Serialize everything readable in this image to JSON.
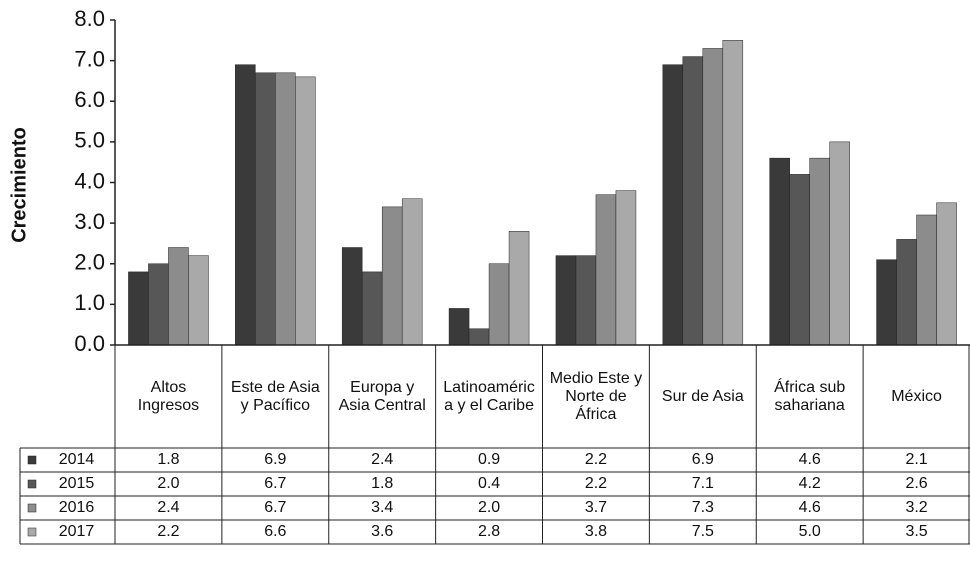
{
  "chart_data": {
    "type": "bar",
    "y_label": "Crecimiento",
    "categories": [
      "Altos Ingresos",
      "Este de Asia y Pacífico",
      "Europa y Asia Central",
      "Latinoamérica y el Caribe",
      "Medio Este y Norte de África",
      "Sur de Asia",
      "África sub sahariana",
      "México"
    ],
    "series": [
      {
        "name": "2014",
        "color": "#3a3a3a",
        "values": [
          1.8,
          6.9,
          2.4,
          0.9,
          2.2,
          6.9,
          4.6,
          2.1
        ],
        "value_labels": [
          "1.8",
          "6.9",
          "2.4",
          "0.9",
          "2.2",
          "6.9",
          "4.6",
          "2.1"
        ]
      },
      {
        "name": "2015",
        "color": "#575757",
        "values": [
          2.0,
          6.7,
          1.8,
          0.4,
          2.2,
          7.1,
          4.2,
          2.6
        ],
        "value_labels": [
          "2.0",
          "6.7",
          "1.8",
          "0.4",
          "2.2",
          "7.1",
          "4.2",
          "2.6"
        ]
      },
      {
        "name": "2016",
        "color": "#8c8c8c",
        "values": [
          2.4,
          6.7,
          3.4,
          2.0,
          3.7,
          7.3,
          4.6,
          3.2
        ],
        "value_labels": [
          "2.4",
          "6.7",
          "3.4",
          "2.0",
          "3.7",
          "7.3",
          "4.6",
          "3.2"
        ]
      },
      {
        "name": "2017",
        "color": "#a9a9a9",
        "values": [
          2.2,
          6.6,
          3.6,
          2.8,
          3.8,
          7.5,
          5.0,
          3.5
        ],
        "value_labels": [
          "2.2",
          "6.6",
          "3.6",
          "2.8",
          "3.8",
          "7.5",
          "5.0",
          "3.5"
        ]
      }
    ],
    "ylim": [
      0,
      8
    ],
    "yticks": [
      {
        "value": 0,
        "label": "0.0"
      },
      {
        "value": 1,
        "label": "1.0"
      },
      {
        "value": 2,
        "label": "2.0"
      },
      {
        "value": 3,
        "label": "3.0"
      },
      {
        "value": 4,
        "label": "4.0"
      },
      {
        "value": 5,
        "label": "5.0"
      },
      {
        "value": 6,
        "label": "6.0"
      },
      {
        "value": 7,
        "label": "7.0"
      },
      {
        "value": 8,
        "label": "8.0"
      }
    ]
  }
}
